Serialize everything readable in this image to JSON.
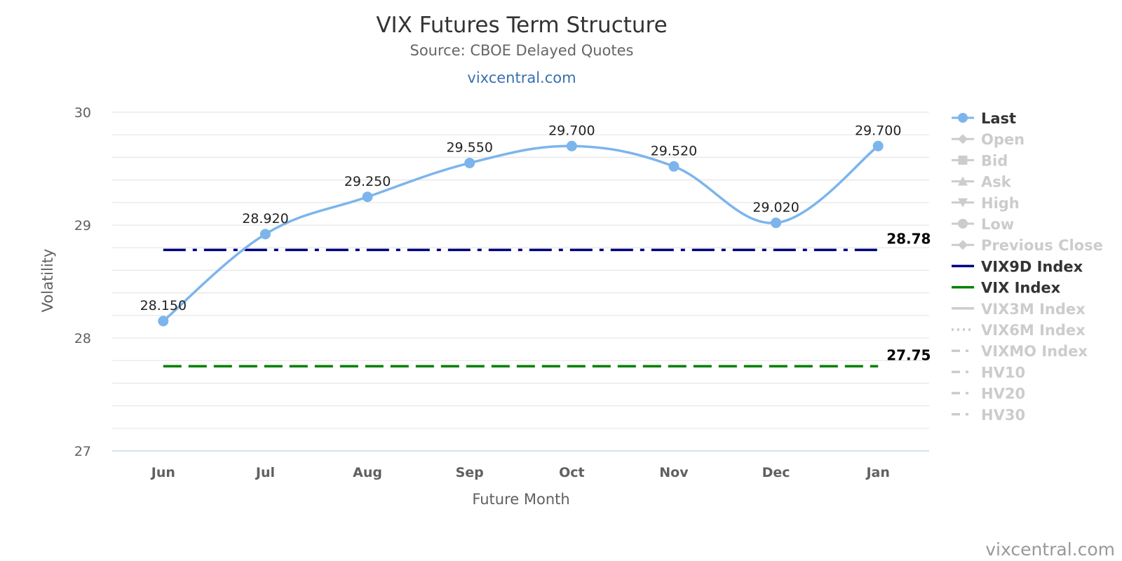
{
  "header": {
    "title": "VIX Futures Term Structure",
    "subtitle": "Source: CBOE Delayed Quotes",
    "site_link": "vixcentral.com"
  },
  "credit": "vixcentral.com",
  "chart_data": {
    "type": "line",
    "title": "VIX Futures Term Structure",
    "subtitle": "Source: CBOE Delayed Quotes",
    "xlabel": "Future Month",
    "ylabel": "Volatility",
    "ylim": [
      27,
      30
    ],
    "yticks": [
      27,
      28,
      29,
      30
    ],
    "grid": true,
    "legend_position": "right",
    "categories": [
      "Jun",
      "Jul",
      "Aug",
      "Sep",
      "Oct",
      "Nov",
      "Dec",
      "Jan"
    ],
    "series": [
      {
        "name": "Last",
        "values": [
          28.15,
          28.92,
          29.25,
          29.55,
          29.7,
          29.52,
          29.02,
          29.7
        ],
        "labels": [
          "28.150",
          "28.920",
          "29.250",
          "29.550",
          "29.700",
          "29.520",
          "29.020",
          "29.700"
        ],
        "color": "#7cb5ec"
      }
    ],
    "reference_lines": [
      {
        "name": "VIX9D Index",
        "value": 28.78,
        "label": "28.78",
        "color": "#000080",
        "style": "dashdot"
      },
      {
        "name": "VIX Index",
        "value": 27.75,
        "label": "27.75",
        "color": "#008000",
        "style": "dash"
      }
    ],
    "legend": [
      {
        "name": "Last",
        "symbol": "circle",
        "line": "solid",
        "active": true,
        "color": "#7cb5ec"
      },
      {
        "name": "Open",
        "symbol": "diamond",
        "line": "solid",
        "active": false,
        "color": "#cccccc"
      },
      {
        "name": "Bid",
        "symbol": "square",
        "line": "solid",
        "active": false,
        "color": "#cccccc"
      },
      {
        "name": "Ask",
        "symbol": "triangle",
        "line": "solid",
        "active": false,
        "color": "#cccccc"
      },
      {
        "name": "High",
        "symbol": "triangle-down",
        "line": "solid",
        "active": false,
        "color": "#cccccc"
      },
      {
        "name": "Low",
        "symbol": "circle",
        "line": "solid",
        "active": false,
        "color": "#cccccc"
      },
      {
        "name": "Previous Close",
        "symbol": "diamond",
        "line": "solid",
        "active": false,
        "color": "#cccccc"
      },
      {
        "name": "VIX9D Index",
        "symbol": "none",
        "line": "solid",
        "active": true,
        "color": "#000080"
      },
      {
        "name": "VIX Index",
        "symbol": "none",
        "line": "solid",
        "active": true,
        "color": "#008000"
      },
      {
        "name": "VIX3M Index",
        "symbol": "none",
        "line": "solid",
        "active": false,
        "color": "#cccccc"
      },
      {
        "name": "VIX6M Index",
        "symbol": "none",
        "line": "dot",
        "active": false,
        "color": "#cccccc"
      },
      {
        "name": "VIXMO Index",
        "symbol": "none",
        "line": "dashdot",
        "active": false,
        "color": "#cccccc"
      },
      {
        "name": "HV10",
        "symbol": "none",
        "line": "dashdot",
        "active": false,
        "color": "#cccccc"
      },
      {
        "name": "HV20",
        "symbol": "none",
        "line": "dashdot",
        "active": false,
        "color": "#cccccc"
      },
      {
        "name": "HV30",
        "symbol": "none",
        "line": "dashdot",
        "active": false,
        "color": "#cccccc"
      }
    ]
  }
}
